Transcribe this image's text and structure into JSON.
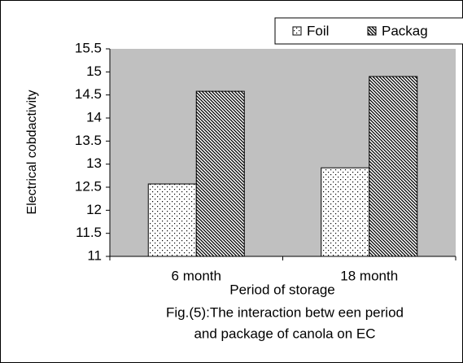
{
  "chart_data": {
    "type": "bar",
    "y_label": "Electrical cobdactivity",
    "x_label": "Period of storage",
    "caption": [
      "Fig.(5):The interaction betw een period",
      "and package of canola on EC"
    ],
    "categories": [
      "6 month",
      "18 month"
    ],
    "series": [
      {
        "name": "Foil",
        "color": "#ffffff",
        "pattern": "dots",
        "values": [
          12.57,
          12.92
        ]
      },
      {
        "name": "Packag",
        "color": "#ffffff",
        "pattern": "hatch",
        "values": [
          14.58,
          14.9
        ]
      }
    ],
    "ylim": [
      11,
      15.5
    ],
    "yticks": [
      11,
      11.5,
      12,
      12.5,
      13,
      13.5,
      14,
      14.5,
      15,
      15.5
    ],
    "grid": false,
    "legend": "top-right",
    "plot_color": "#c0c0c0"
  }
}
